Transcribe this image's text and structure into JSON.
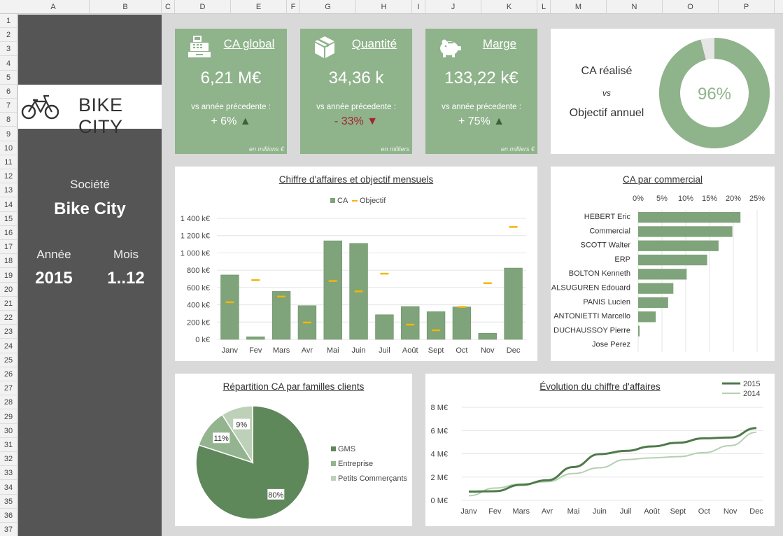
{
  "columns": [
    "A",
    "B",
    "C",
    "D",
    "E",
    "F",
    "G",
    "H",
    "I",
    "J",
    "K",
    "L",
    "M",
    "N",
    "O",
    "P"
  ],
  "rows": [
    "1",
    "2",
    "3",
    "4",
    "5",
    "6",
    "7",
    "8",
    "9",
    "10",
    "11",
    "12",
    "13",
    "14",
    "15",
    "16",
    "17",
    "18",
    "19",
    "20",
    "21",
    "22",
    "23",
    "24",
    "25",
    "26",
    "27",
    "28",
    "29",
    "30",
    "31",
    "32",
    "33",
    "34",
    "35",
    "36",
    "37"
  ],
  "sidebar": {
    "logo_text": "BIKE CITY",
    "company_label": "Société",
    "company_value": "Bike City",
    "year_label": "Année",
    "year_value": "2015",
    "month_label": "Mois",
    "month_value": "1..12"
  },
  "kpis": [
    {
      "icon": "cash-register-icon",
      "title": "CA global",
      "value": "6,21 M€",
      "sub": "vs année précedente :",
      "delta": "+ 6%",
      "trend": "up",
      "unit": "en millions €"
    },
    {
      "icon": "box-icon",
      "title": "Quantité",
      "value": "34,36 k",
      "sub": "vs année précedente :",
      "delta": "- 33%",
      "trend": "down",
      "unit": "en milliers"
    },
    {
      "icon": "piggy-bank-icon",
      "title": "Marge",
      "value": "133,22 k€",
      "sub": "vs année précedente :",
      "delta": "+ 75%",
      "trend": "up",
      "unit": "en milliers €"
    }
  ],
  "target_panel": {
    "line1": "CA réalisé",
    "line2": "vs",
    "line3": "Objectif annuel",
    "percent_label": "96%",
    "percent_value": 96
  },
  "colors": {
    "sidebar": "#555555",
    "kpi": "#8fb38b",
    "bar": "#7fa37a",
    "bar_dark": "#5e875a",
    "objective": "#f2b705",
    "line_2015": "#4f7a4b",
    "line_2014": "#b4d0b0",
    "negative": "#a3262d"
  },
  "chart_data": [
    {
      "type": "bar",
      "title": "Chiffre d'affaires et objectif mensuels",
      "categories": [
        "Janv",
        "Fev",
        "Mars",
        "Avr",
        "Mai",
        "Juin",
        "Juil",
        "Août",
        "Sept",
        "Oct",
        "Nov",
        "Dec"
      ],
      "series": [
        {
          "name": "CA",
          "values": [
            745,
            30,
            555,
            390,
            1140,
            1110,
            285,
            380,
            320,
            375,
            70,
            825
          ]
        },
        {
          "name": "Objectif",
          "values": [
            430,
            685,
            495,
            195,
            675,
            555,
            760,
            170,
            105,
            375,
            650,
            1300
          ]
        }
      ],
      "ylim": [
        0,
        1400
      ],
      "yticks": [
        "0 k€",
        "200 k€",
        "400 k€",
        "600 k€",
        "800 k€",
        "1 000 k€",
        "1 200 k€",
        "1 400 k€"
      ],
      "legend": "top"
    },
    {
      "type": "bar",
      "orientation": "horizontal",
      "title": "CA par commercial",
      "categories": [
        "HEBERT Eric",
        "Commercial",
        "SCOTT Walter",
        "ERP",
        "BOLTON Kenneth",
        "ALSUGUREN Edouard",
        "PANIS Lucien",
        "ANTONIETTI Marcello",
        "DUCHAUSSOY Pierre",
        "Jose Perez"
      ],
      "values": [
        21.5,
        19.8,
        16.9,
        14.5,
        10.2,
        7.4,
        6.3,
        3.7,
        0.3,
        0
      ],
      "xlim": [
        0,
        25
      ],
      "xticks": [
        "0%",
        "5%",
        "10%",
        "15%",
        "20%",
        "25%"
      ]
    },
    {
      "type": "pie",
      "title": "Répartition CA par familles clients",
      "labels": [
        "GMS",
        "Entreprise",
        "Petits Commerçants"
      ],
      "values": [
        80,
        11,
        9
      ],
      "value_labels": [
        "80%",
        "11%",
        "9%"
      ],
      "colors": [
        "#5e875a",
        "#93b48f",
        "#bcd1b8"
      ],
      "legend": "right"
    },
    {
      "type": "line",
      "title": "Évolution du chiffre d'affaires",
      "categories": [
        "Janv",
        "Fev",
        "Mars",
        "Avr",
        "Mai",
        "Juin",
        "Juil",
        "Août",
        "Sept",
        "Oct",
        "Nov",
        "Dec"
      ],
      "series": [
        {
          "name": "2015",
          "values": [
            0.75,
            0.78,
            1.33,
            1.72,
            2.86,
            3.97,
            4.25,
            4.63,
            4.95,
            5.33,
            5.4,
            6.21
          ]
        },
        {
          "name": "2014",
          "values": [
            0.4,
            1.05,
            1.4,
            1.6,
            2.3,
            2.8,
            3.5,
            3.65,
            3.75,
            4.1,
            4.7,
            5.85
          ]
        }
      ],
      "ylim": [
        0,
        8
      ],
      "yticks": [
        "0 M€",
        "2 M€",
        "4 M€",
        "6 M€",
        "8 M€"
      ],
      "legend": "top-right"
    }
  ]
}
